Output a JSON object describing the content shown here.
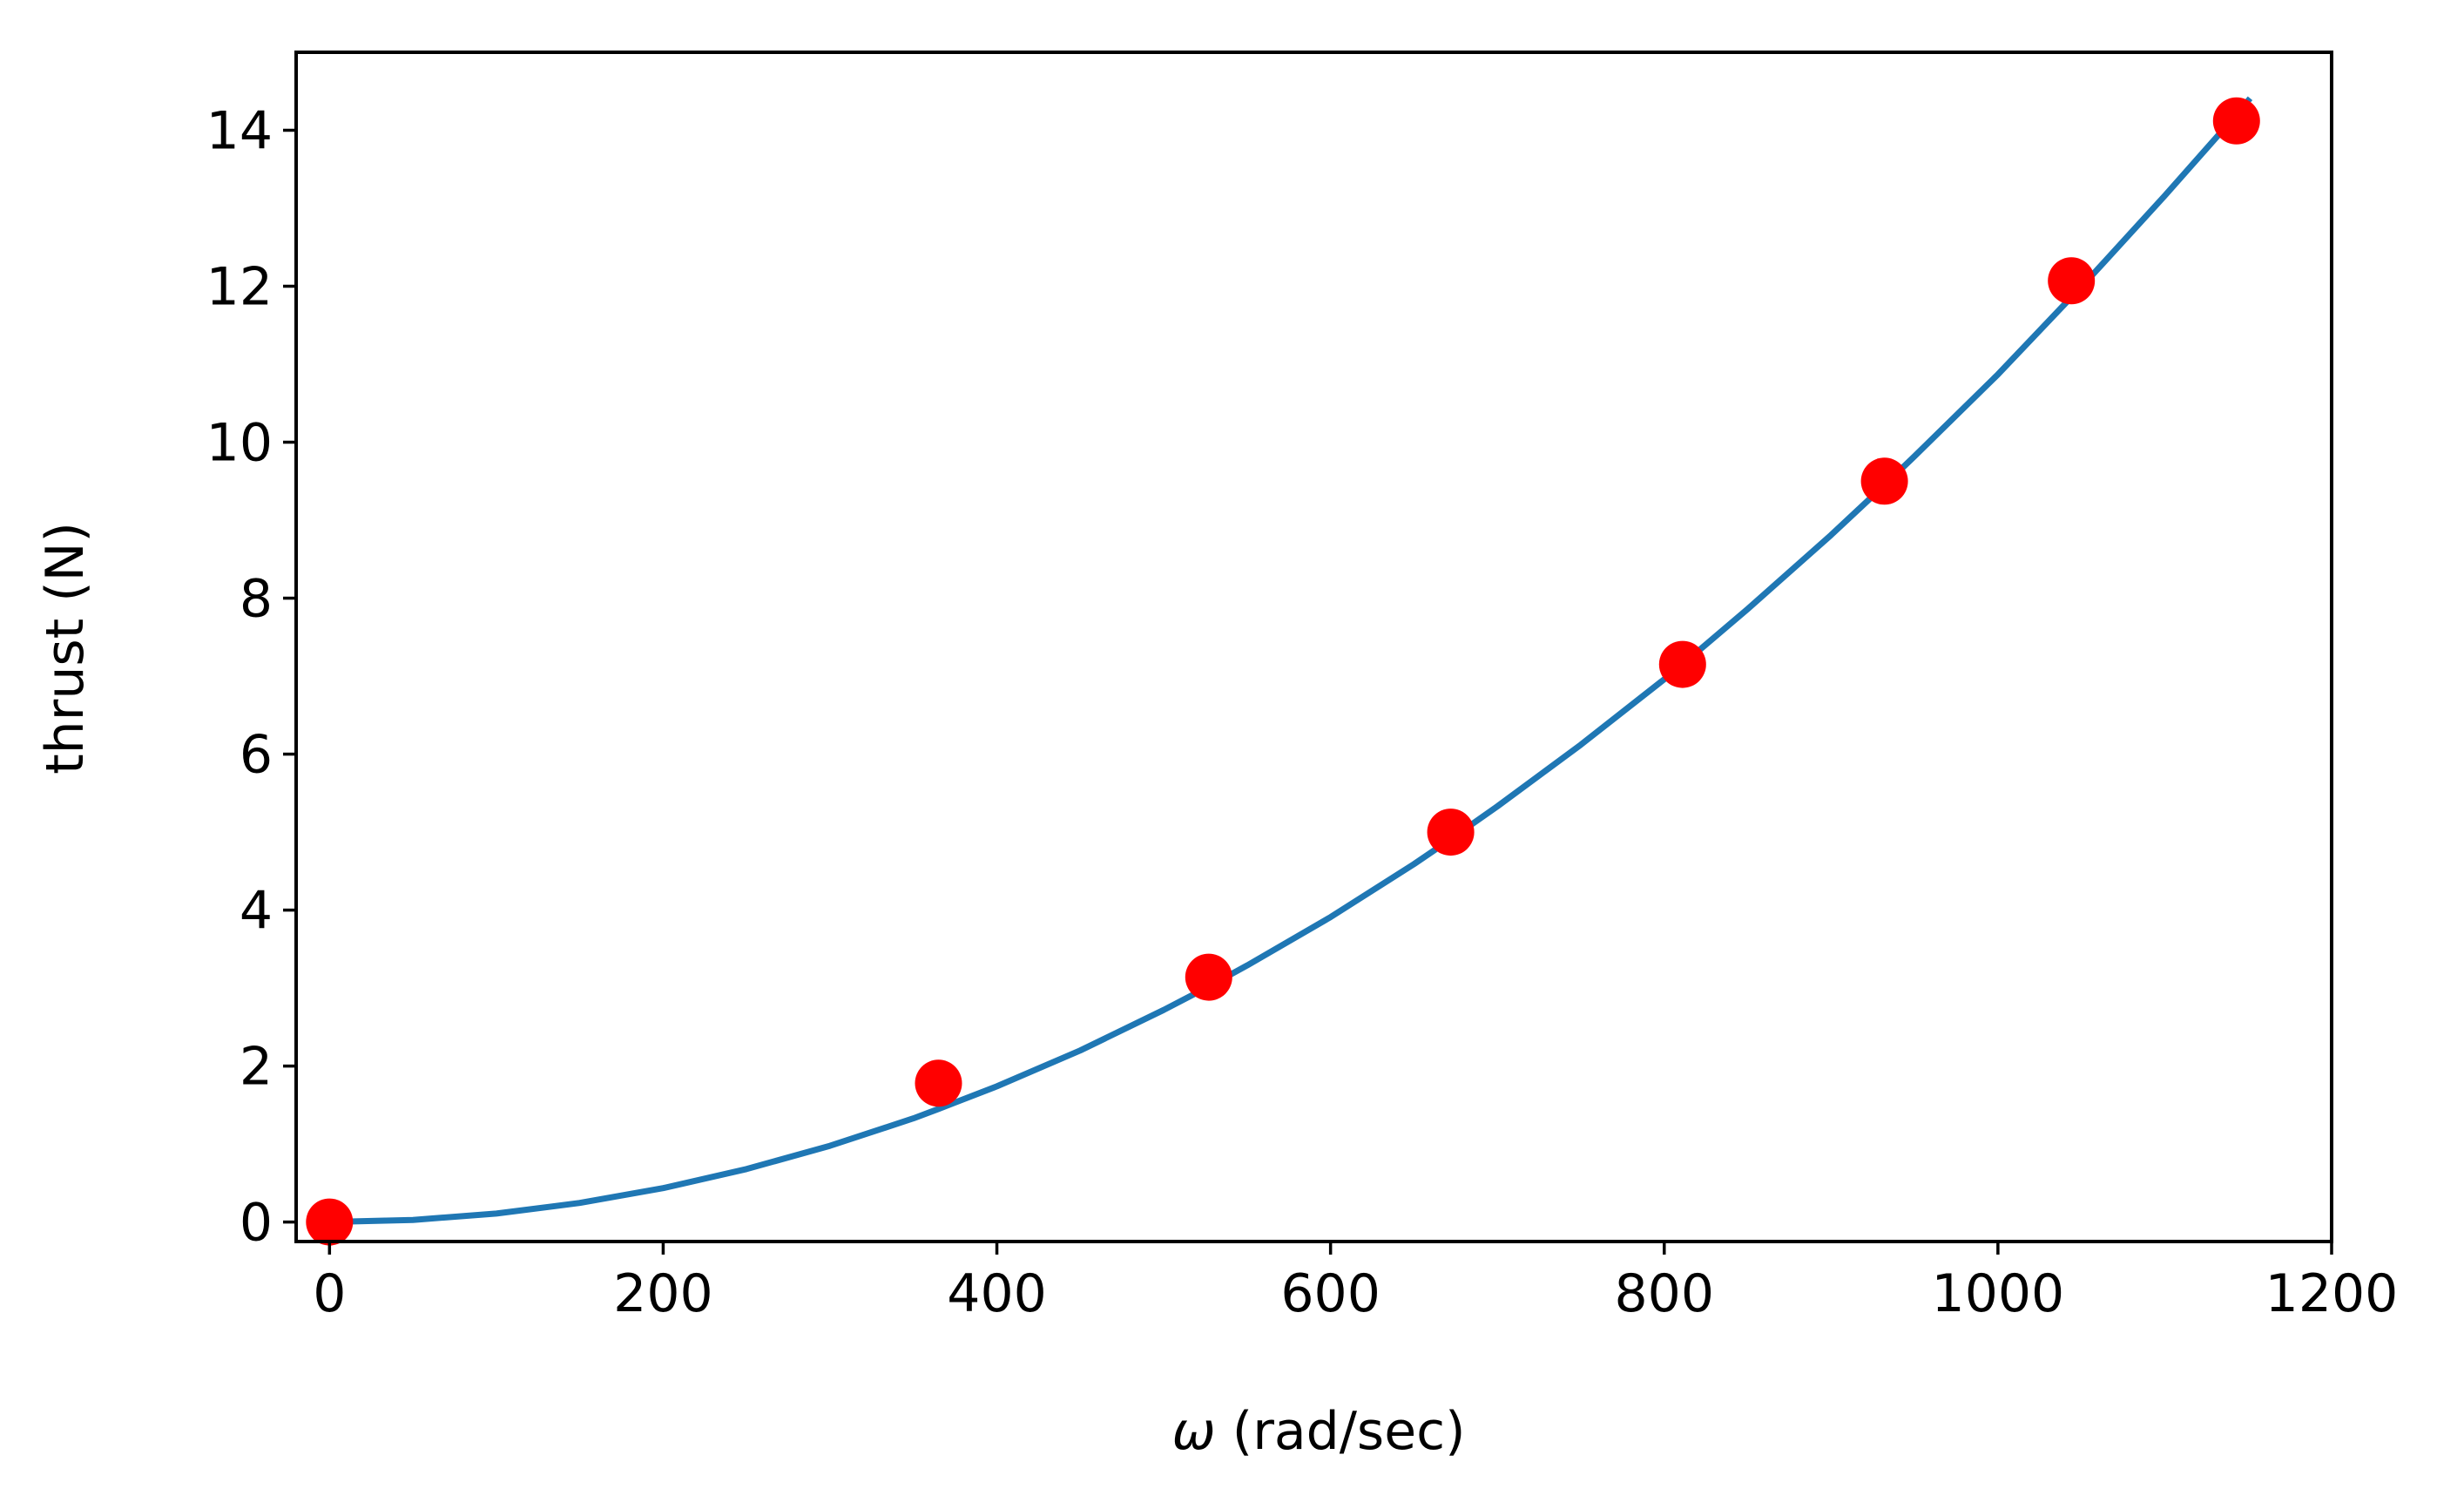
{
  "chart_data": {
    "type": "scatter",
    "title": "",
    "xlabel_symbol": "ω",
    "xlabel_text": " (rad/sec)",
    "ylabel": "thrust (N)",
    "xlim": [
      -20,
      1200
    ],
    "ylim": [
      -0.25,
      15
    ],
    "x_ticks": [
      0,
      200,
      400,
      600,
      800,
      1000,
      1200
    ],
    "y_ticks": [
      0,
      2,
      4,
      6,
      8,
      10,
      12,
      14
    ],
    "grid": false,
    "legend": false,
    "series": [
      {
        "kind": "scatter",
        "color": "#ff0000",
        "x": [
          0,
          365,
          527,
          672,
          811,
          932,
          1044,
          1143
        ],
        "y": [
          0.0,
          1.78,
          3.14,
          5.0,
          7.15,
          9.5,
          12.07,
          14.12
        ]
      },
      {
        "kind": "line",
        "color": "#1f77b4",
        "x": [
          0,
          50,
          100,
          150,
          200,
          250,
          300,
          350,
          365,
          400,
          450,
          500,
          527,
          550,
          600,
          650,
          672,
          700,
          750,
          800,
          811,
          850,
          900,
          932,
          950,
          1000,
          1044,
          1050,
          1100,
          1143,
          1150
        ],
        "y": [
          0.0,
          0.027,
          0.109,
          0.245,
          0.435,
          0.679,
          0.978,
          1.33,
          1.45,
          1.74,
          2.2,
          2.72,
          3.02,
          3.29,
          3.91,
          4.59,
          4.91,
          5.33,
          6.12,
          6.96,
          7.15,
          7.86,
          8.81,
          9.45,
          9.82,
          10.87,
          11.86,
          11.99,
          13.16,
          14.2,
          14.38
        ]
      }
    ]
  }
}
